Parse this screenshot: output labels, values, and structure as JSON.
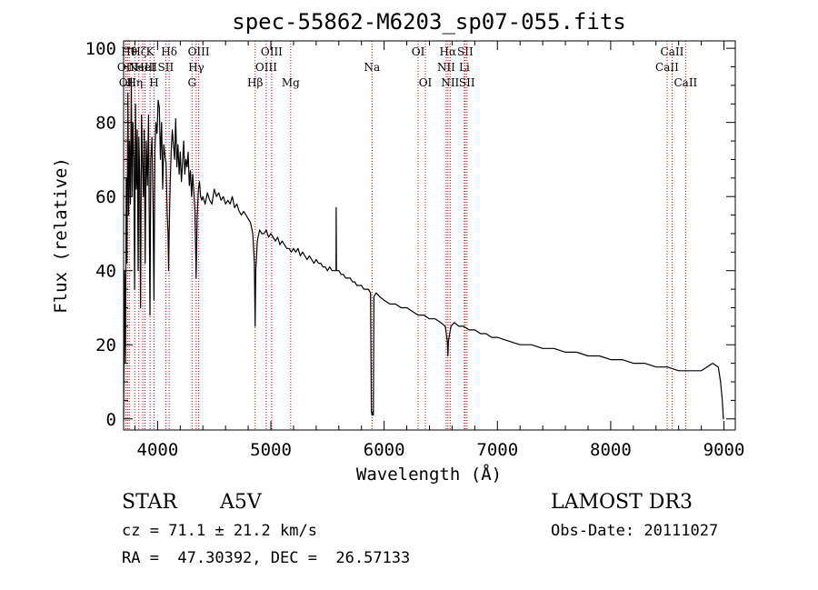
{
  "chart_data": {
    "type": "line",
    "title": "spec-55862-M6203_sp07-055.fits",
    "xlabel": "Wavelength (Å)",
    "ylabel": "Flux (relative)",
    "xlim": [
      3700,
      9100
    ],
    "ylim": [
      -3,
      102
    ],
    "xticks": [
      4000,
      5000,
      6000,
      7000,
      8000,
      9000
    ],
    "yticks": [
      0,
      20,
      40,
      60,
      80,
      100
    ],
    "line_color": "#000000",
    "marker_color": "#cc0000",
    "series": [
      {
        "name": "flux",
        "points": [
          [
            3700,
            0
          ],
          [
            3708,
            40
          ],
          [
            3716,
            15
          ],
          [
            3724,
            65
          ],
          [
            3730,
            42
          ],
          [
            3738,
            88
          ],
          [
            3745,
            55
          ],
          [
            3752,
            75
          ],
          [
            3760,
            58
          ],
          [
            3768,
            92
          ],
          [
            3775,
            60
          ],
          [
            3782,
            80
          ],
          [
            3790,
            70
          ],
          [
            3797,
            35
          ],
          [
            3805,
            85
          ],
          [
            3812,
            62
          ],
          [
            3820,
            78
          ],
          [
            3828,
            40
          ],
          [
            3835,
            76
          ],
          [
            3842,
            66
          ],
          [
            3850,
            30
          ],
          [
            3858,
            82
          ],
          [
            3866,
            70
          ],
          [
            3874,
            60
          ],
          [
            3882,
            78
          ],
          [
            3890,
            42
          ],
          [
            3900,
            75
          ],
          [
            3910,
            63
          ],
          [
            3920,
            82
          ],
          [
            3933,
            28
          ],
          [
            3940,
            70
          ],
          [
            3950,
            76
          ],
          [
            3960,
            58
          ],
          [
            3968,
            32
          ],
          [
            3976,
            72
          ],
          [
            3985,
            80
          ],
          [
            3995,
            77
          ],
          [
            4005,
            86
          ],
          [
            4015,
            84
          ],
          [
            4025,
            70
          ],
          [
            4035,
            80
          ],
          [
            4045,
            62
          ],
          [
            4055,
            74
          ],
          [
            4065,
            71
          ],
          [
            4075,
            69
          ],
          [
            4085,
            55
          ],
          [
            4092,
            50
          ],
          [
            4097,
            40
          ],
          [
            4102,
            50
          ],
          [
            4110,
            62
          ],
          [
            4120,
            72
          ],
          [
            4130,
            78
          ],
          [
            4140,
            74
          ],
          [
            4150,
            70
          ],
          [
            4160,
            81
          ],
          [
            4170,
            68
          ],
          [
            4180,
            74
          ],
          [
            4190,
            66
          ],
          [
            4200,
            72
          ],
          [
            4210,
            64
          ],
          [
            4220,
            69
          ],
          [
            4230,
            75
          ],
          [
            4240,
            66
          ],
          [
            4250,
            70
          ],
          [
            4260,
            68
          ],
          [
            4270,
            72
          ],
          [
            4280,
            63
          ],
          [
            4290,
            67
          ],
          [
            4300,
            60
          ],
          [
            4310,
            66
          ],
          [
            4320,
            61
          ],
          [
            4330,
            56
          ],
          [
            4336,
            45
          ],
          [
            4340,
            38
          ],
          [
            4344,
            45
          ],
          [
            4350,
            55
          ],
          [
            4360,
            62
          ],
          [
            4370,
            64
          ],
          [
            4380,
            60
          ],
          [
            4390,
            59
          ],
          [
            4400,
            60
          ],
          [
            4420,
            58
          ],
          [
            4440,
            61
          ],
          [
            4460,
            59
          ],
          [
            4480,
            58
          ],
          [
            4500,
            62
          ],
          [
            4520,
            60
          ],
          [
            4540,
            61
          ],
          [
            4560,
            59
          ],
          [
            4580,
            60
          ],
          [
            4600,
            58
          ],
          [
            4620,
            59
          ],
          [
            4640,
            58
          ],
          [
            4660,
            60
          ],
          [
            4680,
            57
          ],
          [
            4700,
            58
          ],
          [
            4720,
            56
          ],
          [
            4740,
            55
          ],
          [
            4760,
            56
          ],
          [
            4780,
            55
          ],
          [
            4800,
            54
          ],
          [
            4820,
            53
          ],
          [
            4840,
            50
          ],
          [
            4855,
            42
          ],
          [
            4861,
            25
          ],
          [
            4867,
            40
          ],
          [
            4880,
            48
          ],
          [
            4900,
            51
          ],
          [
            4920,
            50
          ],
          [
            4940,
            50
          ],
          [
            4960,
            51
          ],
          [
            4980,
            49
          ],
          [
            5000,
            50
          ],
          [
            5020,
            49
          ],
          [
            5040,
            48
          ],
          [
            5060,
            49
          ],
          [
            5080,
            47
          ],
          [
            5100,
            48
          ],
          [
            5120,
            47
          ],
          [
            5140,
            46
          ],
          [
            5160,
            46
          ],
          [
            5180,
            45
          ],
          [
            5200,
            46
          ],
          [
            5220,
            45
          ],
          [
            5240,
            46
          ],
          [
            5260,
            44
          ],
          [
            5280,
            45
          ],
          [
            5300,
            44
          ],
          [
            5320,
            43
          ],
          [
            5340,
            44
          ],
          [
            5360,
            43
          ],
          [
            5380,
            42
          ],
          [
            5400,
            43
          ],
          [
            5420,
            42
          ],
          [
            5440,
            42
          ],
          [
            5460,
            41
          ],
          [
            5480,
            41
          ],
          [
            5500,
            40
          ],
          [
            5520,
            41
          ],
          [
            5540,
            40
          ],
          [
            5560,
            40
          ],
          [
            5575,
            40
          ],
          [
            5577,
            57
          ],
          [
            5579,
            40
          ],
          [
            5600,
            40
          ],
          [
            5620,
            39
          ],
          [
            5640,
            39
          ],
          [
            5660,
            38
          ],
          [
            5680,
            38
          ],
          [
            5700,
            38
          ],
          [
            5720,
            37
          ],
          [
            5740,
            37
          ],
          [
            5760,
            36
          ],
          [
            5780,
            36
          ],
          [
            5800,
            36
          ],
          [
            5820,
            35
          ],
          [
            5840,
            35
          ],
          [
            5860,
            35
          ],
          [
            5880,
            34
          ],
          [
            5887,
            2
          ],
          [
            5893,
            1
          ],
          [
            5900,
            2
          ],
          [
            5905,
            1
          ],
          [
            5910,
            33
          ],
          [
            5930,
            34
          ],
          [
            5960,
            33
          ],
          [
            6000,
            32
          ],
          [
            6050,
            31
          ],
          [
            6100,
            31
          ],
          [
            6150,
            30
          ],
          [
            6200,
            30
          ],
          [
            6250,
            29
          ],
          [
            6300,
            28
          ],
          [
            6350,
            28
          ],
          [
            6400,
            27
          ],
          [
            6450,
            27
          ],
          [
            6500,
            26
          ],
          [
            6540,
            25
          ],
          [
            6558,
            21
          ],
          [
            6563,
            17
          ],
          [
            6568,
            21
          ],
          [
            6590,
            25
          ],
          [
            6620,
            26
          ],
          [
            6660,
            25
          ],
          [
            6700,
            25
          ],
          [
            6750,
            24
          ],
          [
            6800,
            24
          ],
          [
            6850,
            23
          ],
          [
            6900,
            23
          ],
          [
            6950,
            22
          ],
          [
            7000,
            22
          ],
          [
            7100,
            21
          ],
          [
            7200,
            20
          ],
          [
            7300,
            20
          ],
          [
            7400,
            19
          ],
          [
            7500,
            19
          ],
          [
            7600,
            18
          ],
          [
            7700,
            18
          ],
          [
            7800,
            17
          ],
          [
            7900,
            17
          ],
          [
            8000,
            16
          ],
          [
            8100,
            16
          ],
          [
            8200,
            15
          ],
          [
            8300,
            15
          ],
          [
            8400,
            14
          ],
          [
            8500,
            14
          ],
          [
            8600,
            13
          ],
          [
            8700,
            13
          ],
          [
            8800,
            13
          ],
          [
            8850,
            14
          ],
          [
            8900,
            15
          ],
          [
            8950,
            14
          ],
          [
            8970,
            10
          ],
          [
            8985,
            5
          ],
          [
            8995,
            0
          ],
          [
            9000,
            0
          ]
        ]
      }
    ],
    "spectral_lines": [
      {
        "wave": 3720,
        "label": "OII",
        "row": 2
      },
      {
        "wave": 3735,
        "label": "OII",
        "row": 3
      },
      {
        "wave": 3750,
        "label": "Hθ",
        "row": 1
      },
      {
        "wave": 3798,
        "label": "Hη",
        "row": 3
      },
      {
        "wave": 3835,
        "label": "Hζ",
        "row": 1
      },
      {
        "wave": 3869,
        "label": "NeIII",
        "row": 2
      },
      {
        "wave": 3889,
        "label": "HeI",
        "row": 2
      },
      {
        "wave": 3934,
        "label": "K",
        "row": 1
      },
      {
        "wave": 3969,
        "label": "H",
        "row": 3
      },
      {
        "wave": 4072,
        "label": "SII",
        "row": 2
      },
      {
        "wave": 4102,
        "label": "Hδ",
        "row": 1
      },
      {
        "wave": 4304,
        "label": "G",
        "row": 3
      },
      {
        "wave": 4341,
        "label": "Hγ",
        "row": 2
      },
      {
        "wave": 4363,
        "label": "OIII",
        "row": 1
      },
      {
        "wave": 4861,
        "label": "Hβ",
        "row": 3
      },
      {
        "wave": 4959,
        "label": "OIII",
        "row": 2
      },
      {
        "wave": 5007,
        "label": "OIII",
        "row": 1
      },
      {
        "wave": 5175,
        "label": "Mg",
        "row": 3
      },
      {
        "wave": 5893,
        "label": "Na",
        "row": 2
      },
      {
        "wave": 6300,
        "label": "OI",
        "row": 1
      },
      {
        "wave": 6364,
        "label": "OI",
        "row": 3
      },
      {
        "wave": 6548,
        "label": "NII",
        "row": 2
      },
      {
        "wave": 6563,
        "label": "Hα",
        "row": 1
      },
      {
        "wave": 6583,
        "label": "NII",
        "row": 3
      },
      {
        "wave": 6708,
        "label": "Li",
        "row": 2
      },
      {
        "wave": 6716,
        "label": "SII",
        "row": 1
      },
      {
        "wave": 6731,
        "label": "SII",
        "row": 3
      },
      {
        "wave": 8498,
        "label": "CaII",
        "row": 2
      },
      {
        "wave": 8542,
        "label": "CaII",
        "row": 1
      },
      {
        "wave": 8662,
        "label": "CaII",
        "row": 3
      }
    ]
  },
  "info": {
    "object_class": "STAR",
    "subclass": "A5V",
    "survey": "LAMOST DR3",
    "cz": "cz = 71.1 ± 21.2 km/s",
    "obs_date": "Obs-Date: 20111027",
    "coords": "RA =  47.30392, DEC =  26.57133"
  }
}
